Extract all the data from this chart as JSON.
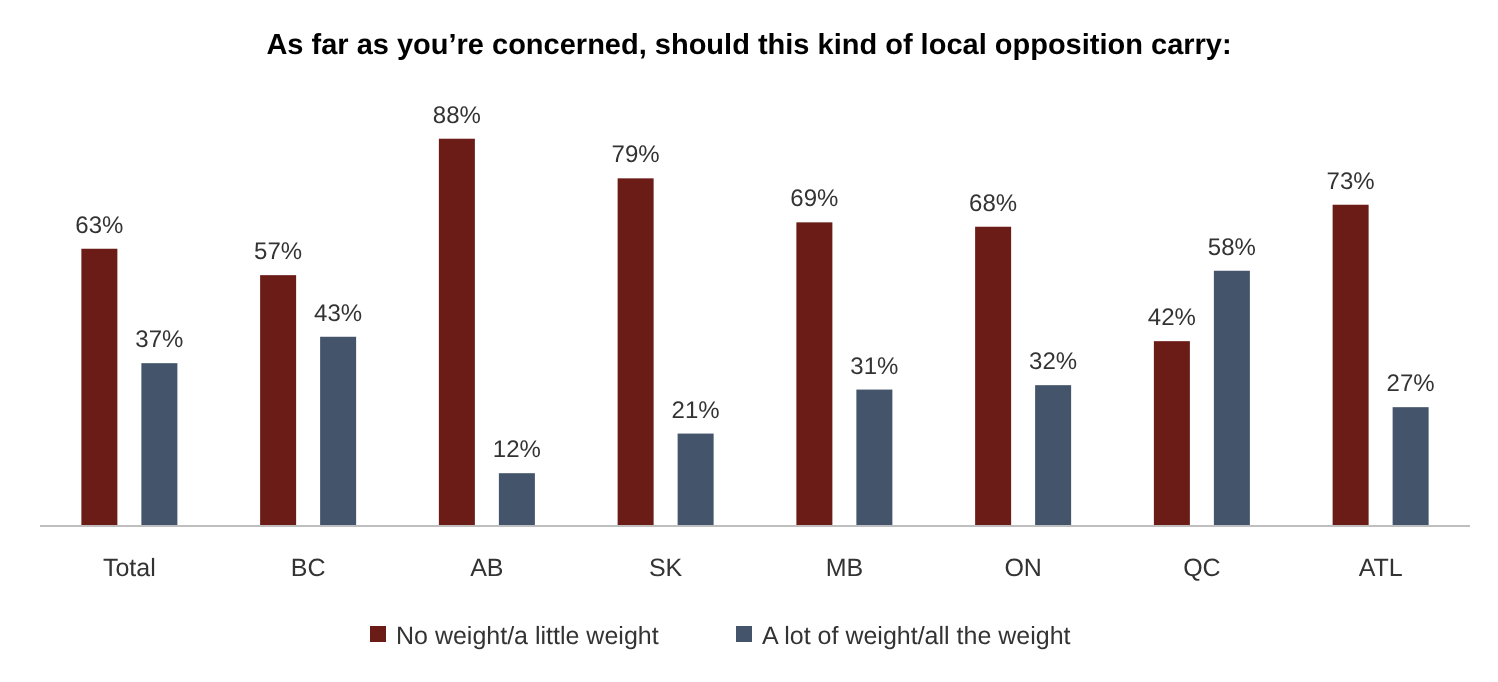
{
  "chart_data": {
    "type": "bar",
    "title": "As far as you’re concerned, should this kind of local opposition carry:",
    "categories": [
      "Total",
      "BC",
      "AB",
      "SK",
      "MB",
      "ON",
      "QC",
      "ATL"
    ],
    "series": [
      {
        "name": "No weight/a little weight",
        "color": "#6b1c17",
        "values": [
          63,
          57,
          88,
          79,
          69,
          68,
          42,
          73
        ],
        "value_labels": [
          "63%",
          "57%",
          "88%",
          "79%",
          "69%",
          "68%",
          "42%",
          "73%"
        ]
      },
      {
        "name": "A lot of weight/all the weight",
        "color": "#44546a",
        "values": [
          37,
          43,
          12,
          21,
          31,
          32,
          58,
          27
        ],
        "value_labels": [
          "37%",
          "43%",
          "12%",
          "21%",
          "31%",
          "32%",
          "58%",
          "27%"
        ]
      }
    ],
    "legend": "bottom"
  }
}
